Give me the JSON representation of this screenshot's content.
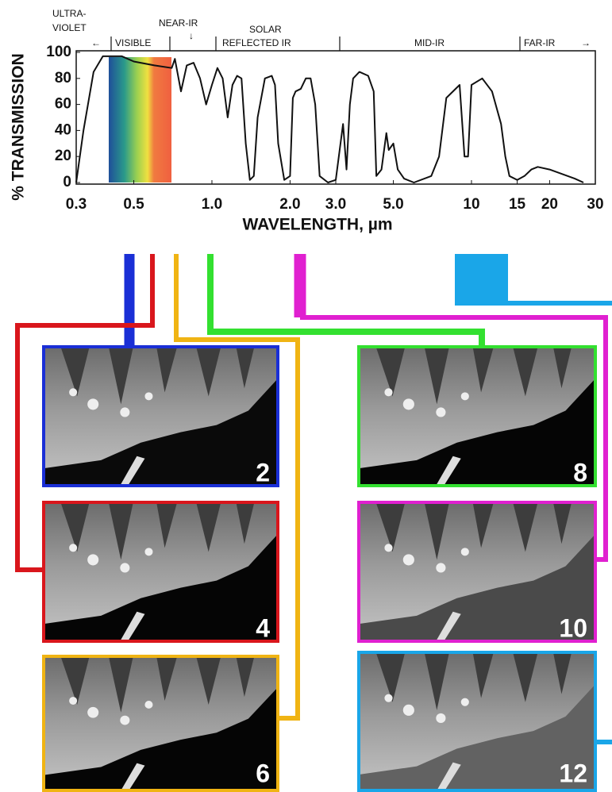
{
  "chart_data": {
    "type": "line",
    "ylabel": "% TRANSMISSION",
    "xlabel": "WAVELENGTH, µm",
    "xscale": "log",
    "color": "#111111",
    "xlim": [
      0.3,
      30
    ],
    "xticks": [
      0.3,
      0.5,
      {
        "value": 1,
        "label": "1.0"
      },
      {
        "value": 2,
        "label": "2.0"
      },
      {
        "value": 3,
        "label": "3.0"
      },
      {
        "value": 5,
        "label": "5.0"
      },
      10,
      15,
      20,
      30
    ],
    "ylim": [
      0,
      100
    ],
    "yticks": [
      0,
      20,
      40,
      60,
      80,
      100
    ],
    "annotations": [
      "ULTRA-",
      "VIOLET",
      "VISIBLE",
      "NEAR-IR",
      "SOLAR",
      "REFLECTED IR",
      "MID-IR",
      "FAR-IR"
    ],
    "x": [
      0.3,
      0.32,
      0.35,
      0.38,
      0.45,
      0.5,
      0.6,
      0.7,
      0.72,
      0.76,
      0.8,
      0.85,
      0.9,
      0.95,
      1.0,
      1.05,
      1.1,
      1.15,
      1.2,
      1.25,
      1.3,
      1.35,
      1.4,
      1.45,
      1.5,
      1.6,
      1.7,
      1.75,
      1.8,
      1.9,
      2.0,
      2.05,
      2.1,
      2.2,
      2.3,
      2.4,
      2.5,
      2.6,
      2.8,
      3.0,
      3.2,
      3.3,
      3.4,
      3.5,
      3.7,
      4.0,
      4.2,
      4.3,
      4.5,
      4.7,
      4.8,
      5.0,
      5.2,
      5.5,
      6,
      7,
      7.5,
      8,
      9,
      9.4,
      9.7,
      10,
      11,
      12,
      13,
      13.5,
      14,
      15,
      16,
      17,
      18,
      20,
      25,
      27
    ],
    "values": [
      0,
      40,
      85,
      97,
      97,
      93,
      90,
      88,
      95,
      70,
      90,
      92,
      80,
      60,
      75,
      88,
      80,
      50,
      75,
      82,
      80,
      30,
      2,
      5,
      50,
      80,
      82,
      75,
      30,
      2,
      5,
      65,
      70,
      72,
      80,
      80,
      60,
      5,
      0,
      2,
      45,
      10,
      60,
      80,
      85,
      82,
      70,
      5,
      10,
      38,
      25,
      30,
      10,
      3,
      0,
      5,
      20,
      65,
      75,
      20,
      20,
      75,
      80,
      70,
      45,
      20,
      5,
      2,
      5,
      10,
      12,
      10,
      3,
      0
    ]
  },
  "panels": [
    {
      "label": "2"
    },
    {
      "label": "4"
    },
    {
      "label": "6"
    },
    {
      "label": "8"
    },
    {
      "label": "10"
    },
    {
      "label": "12"
    }
  ]
}
